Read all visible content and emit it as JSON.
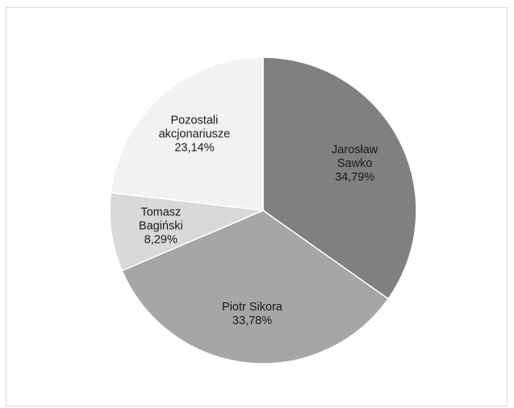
{
  "chart_data": {
    "type": "pie",
    "title": "",
    "legend": "none",
    "series": [
      {
        "values": [
          34.79,
          33.78,
          8.29,
          23.14
        ],
        "categories": [
          "Jarosław Sawko",
          "Piotr Sikora",
          "Tomasz Bagiński",
          "Pozostali akcjonariusze"
        ]
      }
    ],
    "slices": [
      {
        "name_lines": [
          "Jarosław",
          "Sawko"
        ],
        "value": 34.79,
        "label": "34,79%",
        "color": "#808080"
      },
      {
        "name_lines": [
          "Piotr Sikora"
        ],
        "value": 33.78,
        "label": "33,78%",
        "color": "#a6a6a6"
      },
      {
        "name_lines": [
          "Tomasz",
          "Bagiński"
        ],
        "value": 8.29,
        "label": "8,29%",
        "color": "#d9d9d9"
      },
      {
        "name_lines": [
          "Pozostali",
          "akcjonariusze"
        ],
        "value": 23.14,
        "label": "23,14%",
        "color": "#f2f2f2"
      }
    ],
    "slice_border_color": "#ffffff"
  }
}
